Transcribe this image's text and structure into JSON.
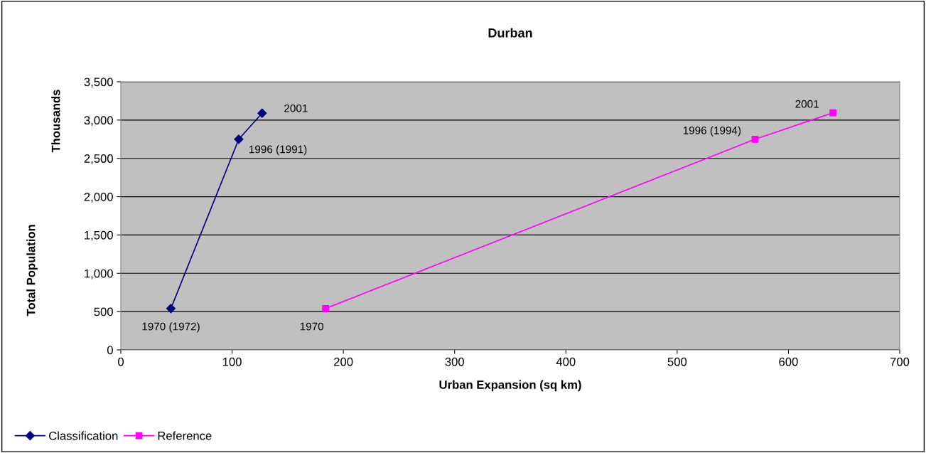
{
  "chart_data": {
    "type": "line",
    "title": "Durban",
    "xlabel": "Urban Expansion (sq km)",
    "ylabel": "Total Population",
    "y2label": "Thousands",
    "series": [
      {
        "name": "Classification",
        "color": "#000080",
        "marker": "diamond",
        "x": [
          45,
          106,
          127
        ],
        "values": [
          540,
          2750,
          3090
        ]
      },
      {
        "name": "Reference",
        "color": "#ff00ff",
        "marker": "square",
        "x": [
          184,
          570,
          640
        ],
        "values": [
          540,
          2750,
          3095
        ]
      }
    ],
    "annotations": [
      {
        "text": "1970 (1972)",
        "x": 45,
        "y": 540
      },
      {
        "text": "1996 (1991)",
        "x": 106,
        "y": 2750
      },
      {
        "text": "2001",
        "x": 127,
        "y": 3090
      },
      {
        "text": "1970",
        "x": 184,
        "y": 540
      },
      {
        "text": "1996 (1994)",
        "x": 570,
        "y": 2750
      },
      {
        "text": "2001",
        "x": 640,
        "y": 3095
      }
    ],
    "xlim": [
      0,
      700
    ],
    "xticks": [
      0,
      100,
      200,
      300,
      400,
      500,
      600,
      700
    ],
    "ylim": [
      0,
      3500
    ],
    "yticks": [
      {
        "value": 0,
        "label": "0"
      },
      {
        "value": 500,
        "label": "500"
      },
      {
        "value": 1000,
        "label": "1,000"
      },
      {
        "value": 1500,
        "label": "1,500"
      },
      {
        "value": 2000,
        "label": "2,000"
      },
      {
        "value": 2500,
        "label": "2,500"
      },
      {
        "value": 3000,
        "label": "3,000"
      },
      {
        "value": 3500,
        "label": "3,500"
      }
    ],
    "grid": "y",
    "legend": "bottom left",
    "line_style": "solid"
  }
}
